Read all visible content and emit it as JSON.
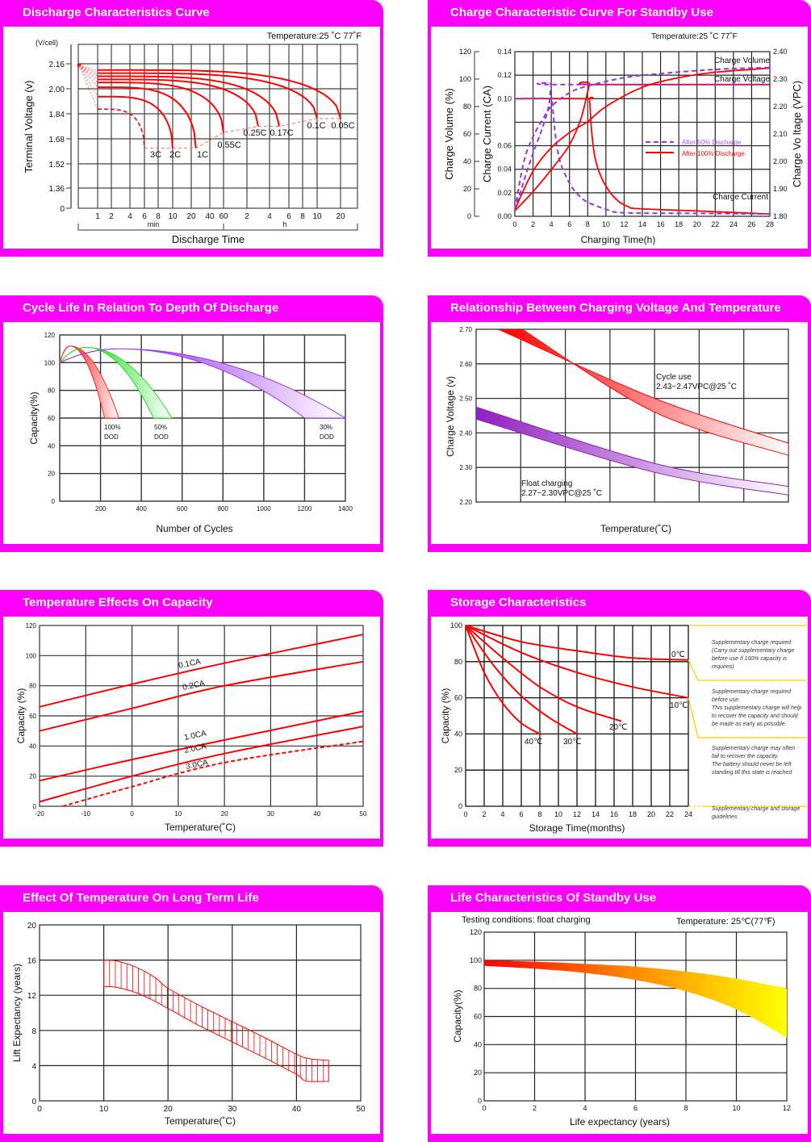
{
  "colors": {
    "panel": "#ff00ff",
    "red": "#ff0000",
    "purple": "#9933dd",
    "green": "#22dd22",
    "yellow": "#ffcc00",
    "grid": "#333333"
  },
  "chart_data": [
    {
      "type": "line",
      "title": "Discharge Characteristics Curve",
      "note": "Temperature:25 ˚C  77˚F",
      "y_unit": "(V/cell)",
      "ylabel": "Terminal  Voltage  (v)",
      "xlabel": "Discharge  Time",
      "y_ticks": [
        "2.16",
        "2.00",
        "1.84",
        "1.68",
        "1.52",
        "1.36",
        "0"
      ],
      "x_ticks": [
        "1",
        "2",
        "4",
        "6",
        "8",
        "10",
        "20",
        "40",
        "60",
        "2",
        "4",
        "6",
        "8",
        "10",
        "20"
      ],
      "x_tick_minutes": [
        1,
        2,
        4,
        6,
        8,
        10,
        20,
        40,
        60,
        120,
        240,
        360,
        480,
        600,
        1200
      ],
      "x_groups": [
        "min",
        "h"
      ],
      "series": [
        {
          "name": "3C",
          "start_v": 1.87,
          "end_min": 6,
          "end_v": 1.62,
          "dashed": true
        },
        {
          "name": "2C",
          "start_v": 1.95,
          "end_min": 10,
          "end_v": 1.62
        },
        {
          "name": "1C",
          "start_v": 2.01,
          "end_min": 25,
          "end_v": 1.62
        },
        {
          "name": "0.55C",
          "start_v": 2.04,
          "end_min": 60,
          "end_v": 1.72
        },
        {
          "name": "0.25C",
          "start_v": 2.06,
          "end_min": 180,
          "end_v": 1.76
        },
        {
          "name": "0.17C",
          "start_v": 2.08,
          "end_min": 300,
          "end_v": 1.76
        },
        {
          "name": "0.1C",
          "start_v": 2.1,
          "end_min": 600,
          "end_v": 1.81
        },
        {
          "name": "0.05C",
          "start_v": 2.12,
          "end_min": 1200,
          "end_v": 1.81
        }
      ]
    },
    {
      "type": "line",
      "title": "Charge Characteristic Curve For Standby Use",
      "note": "Temperature:25 ˚C  77˚F",
      "ylabel_volume": "Charge   Volume (%)",
      "ylabel_current": "Charge  Current (CA)",
      "ylabel_voltage": "Charge Vo ltage (VPC)",
      "xlabel": "Charging Time(h)",
      "xlim": [
        0,
        28
      ],
      "x_ticks": [
        "0",
        "2",
        "4",
        "6",
        "8",
        "10",
        "12",
        "14",
        "16",
        "18",
        "20",
        "22",
        "24",
        "26",
        "28"
      ],
      "volume_ticks": [
        "0",
        "20",
        "40",
        "60",
        "80",
        "100",
        "120"
      ],
      "current_ticks": [
        "0.00",
        "0.02",
        "0.04",
        "0.06",
        "0.10",
        "0.12",
        "0.14"
      ],
      "current_tick_values": [
        0,
        0.02,
        0.04,
        0.06,
        0.1,
        0.12,
        0.14
      ],
      "voltage_ticks": [
        "1.80",
        "1.90",
        "2.00",
        "2.10",
        "2.20",
        "2.30",
        "2.40"
      ],
      "annotations": [
        "Charge Volume",
        "Charge Voltage",
        "Charge Current"
      ],
      "legend": [
        "After 50% Discharge",
        "After 100% Discharge"
      ],
      "series": [
        {
          "name": "Current after 100% discharge",
          "axis": "current",
          "dashed": false,
          "points": [
            [
              0,
              0.1
            ],
            [
              7.9,
              0.1
            ],
            [
              8.2,
              0.099
            ],
            [
              8.4,
              0.075
            ],
            [
              8.8,
              0.05
            ],
            [
              9.5,
              0.033
            ],
            [
              10.5,
              0.02
            ],
            [
              11.5,
              0.012
            ],
            [
              12.5,
              0.008
            ],
            [
              13.5,
              0.0065
            ],
            [
              20,
              0.0045
            ],
            [
              28,
              0.002
            ]
          ]
        },
        {
          "name": "Current after 50% discharge",
          "axis": "current",
          "dashed": true,
          "points": [
            [
              0,
              0.1
            ],
            [
              3.8,
              0.1
            ],
            [
              4.1,
              0.095
            ],
            [
              4.5,
              0.066
            ],
            [
              5,
              0.046
            ],
            [
              6,
              0.028
            ],
            [
              7,
              0.018
            ],
            [
              8,
              0.012
            ],
            [
              10,
              0.006
            ],
            [
              12,
              0.003
            ],
            [
              20,
              0.0025
            ],
            [
              28,
              0.002
            ]
          ]
        },
        {
          "name": "Voltage after 100% discharge",
          "axis": "voltage",
          "dashed": false,
          "points": [
            [
              0,
              1.82
            ],
            [
              2,
              1.89
            ],
            [
              4,
              1.97
            ],
            [
              6,
              2.06
            ],
            [
              7.3,
              2.16
            ],
            [
              8.2,
              2.28
            ],
            [
              8.6,
              2.28
            ],
            [
              28,
              2.28
            ]
          ]
        },
        {
          "name": "Voltage after 50% discharge",
          "axis": "voltage",
          "dashed": true,
          "points": [
            [
              0,
              1.82
            ],
            [
              1,
              1.93
            ],
            [
              2,
              2.03
            ],
            [
              3,
              2.12
            ],
            [
              3.7,
              2.2
            ],
            [
              4,
              2.28
            ],
            [
              4.3,
              2.28
            ],
            [
              28,
              2.28
            ]
          ]
        },
        {
          "name": "Volume after 100% discharge",
          "axis": "volume",
          "dashed": false,
          "points": [
            [
              0,
              5
            ],
            [
              2,
              33
            ],
            [
              4,
              50
            ],
            [
              6,
              61
            ],
            [
              8,
              69
            ],
            [
              10,
              80
            ],
            [
              14,
              94
            ],
            [
              18,
              101
            ],
            [
              22,
              105
            ],
            [
              28,
              108
            ]
          ]
        },
        {
          "name": "Volume after 50% discharge",
          "axis": "volume",
          "dashed": true,
          "points": [
            [
              0,
              5
            ],
            [
              1,
              40
            ],
            [
              2,
              58
            ],
            [
              3,
              70
            ],
            [
              4,
              80
            ],
            [
              6,
              90
            ],
            [
              8,
              95
            ],
            [
              12,
              101
            ],
            [
              16,
              104
            ],
            [
              22,
              107
            ],
            [
              28,
              108.5
            ]
          ]
        }
      ]
    },
    {
      "type": "area",
      "title": "Cycle Life In Relation To Depth Of Discharge",
      "xlabel": "Number of Cycles",
      "ylabel": "Capacity(%)",
      "xlim": [
        0,
        1400
      ],
      "ylim": [
        0,
        120
      ],
      "x_ticks": [
        "200",
        "400",
        "600",
        "800",
        "1000",
        "1200",
        "1400"
      ],
      "y_ticks": [
        "0",
        "20",
        "40",
        "60",
        "80",
        "100",
        "120"
      ],
      "series": [
        {
          "name": "100%",
          "label2": "DOD",
          "peak": [
            50,
            112
          ],
          "end_cycles": [
            220,
            290
          ],
          "end_capacity": 60,
          "color": "#ff2020"
        },
        {
          "name": "50%",
          "label2": "DOD",
          "peak": [
            130,
            111
          ],
          "end_cycles": [
            460,
            550
          ],
          "end_capacity": 60,
          "color": "#22dd22"
        },
        {
          "name": "30%",
          "label2": "DOD",
          "peak": [
            290,
            110
          ],
          "end_cycles": [
            1200,
            1400
          ],
          "end_capacity": 60,
          "color": "#9933ee"
        }
      ]
    },
    {
      "type": "area",
      "title": "Relationship Between Charging Voltage And Temperature",
      "xlabel": "Temperature(˚C)",
      "ylabel": "Charge Voltage  (v)",
      "ylim": [
        2.2,
        2.7
      ],
      "x_grid_columns": 7,
      "y_ticks": [
        "2.20",
        "2.30",
        "2.40",
        "2.50",
        "2.60",
        "2.70"
      ],
      "series": [
        {
          "name": "Cycle use",
          "range": "2.43~2.47VPC@25 ˚C",
          "color": "#ff0000",
          "upper": [
            [
              0.5,
              2.7
            ],
            [
              4,
              2.5
            ],
            [
              7,
              2.37
            ]
          ],
          "lower": [
            [
              1.03,
              2.7
            ],
            [
              4,
              2.46
            ],
            [
              7,
              2.335
            ]
          ]
        },
        {
          "name": "Float charging",
          "range": "2.27~2.30VPC@25 ˚C",
          "color": "#9020c0",
          "upper": [
            [
              0,
              2.475
            ],
            [
              4,
              2.312
            ],
            [
              7,
              2.245
            ]
          ],
          "lower": [
            [
              0,
              2.44
            ],
            [
              4,
              2.286
            ],
            [
              7,
              2.22
            ]
          ]
        }
      ]
    },
    {
      "type": "line",
      "title": "Temperature Effects On Capacity",
      "xlabel": "Temperature(˚C)",
      "ylabel": "Capacity  (%)",
      "xlim": [
        -20,
        50
      ],
      "ylim": [
        0,
        120
      ],
      "x_ticks": [
        "-20",
        "-10",
        "0",
        "10",
        "20",
        "30",
        "40",
        "50"
      ],
      "y_ticks": [
        "0",
        "20",
        "40",
        "60",
        "80",
        "100",
        "120"
      ],
      "series": [
        {
          "name": "0.1CA",
          "points": [
            [
              -20,
              66
            ],
            [
              0,
              81
            ],
            [
              20,
              95
            ],
            [
              50,
              114
            ]
          ]
        },
        {
          "name": "0.2CA",
          "points": [
            [
              -20,
              50
            ],
            [
              0,
              65
            ],
            [
              20,
              80
            ],
            [
              50,
              96
            ]
          ]
        },
        {
          "name": "1.0CA",
          "points": [
            [
              -20,
              17
            ],
            [
              0,
              31
            ],
            [
              20,
              44
            ],
            [
              50,
              63
            ]
          ]
        },
        {
          "name": "2.0CA",
          "points": [
            [
              -20,
              3
            ],
            [
              0,
              20
            ],
            [
              20,
              35
            ],
            [
              50,
              53
            ]
          ]
        },
        {
          "name": "3.0CA",
          "dashed": true,
          "points": [
            [
              -15,
              0
            ],
            [
              0,
              13
            ],
            [
              20,
              29
            ],
            [
              50,
              43
            ]
          ]
        }
      ]
    },
    {
      "type": "line",
      "title": "Storage Characteristics",
      "xlabel": "Storage  Time(months)",
      "ylabel": "Capacity   (%)",
      "xlim": [
        0,
        24
      ],
      "ylim": [
        0,
        100
      ],
      "x_ticks": [
        "0",
        "2",
        "4",
        "6",
        "8",
        "10",
        "12",
        "14",
        "16",
        "18",
        "20",
        "22",
        "24"
      ],
      "y_ticks": [
        "0",
        "20",
        "40",
        "60",
        "80",
        "100"
      ],
      "series": [
        {
          "name": "0℃",
          "points": [
            [
              0,
              100
            ],
            [
              6,
              91
            ],
            [
              12,
              86
            ],
            [
              18,
              82
            ],
            [
              24,
              81
            ]
          ]
        },
        {
          "name": "10℃",
          "points": [
            [
              0,
              100
            ],
            [
              6,
              85
            ],
            [
              12,
              74
            ],
            [
              18,
              66
            ],
            [
              24,
              60
            ]
          ]
        },
        {
          "name": "20℃",
          "points": [
            [
              0,
              100
            ],
            [
              4,
              82
            ],
            [
              8,
              66
            ],
            [
              12,
              55
            ],
            [
              16.8,
              47
            ]
          ]
        },
        {
          "name": "30℃",
          "points": [
            [
              0,
              100
            ],
            [
              3,
              78
            ],
            [
              6,
              61
            ],
            [
              9,
              49
            ],
            [
              12,
              40
            ]
          ]
        },
        {
          "name": "40℃",
          "points": [
            [
              0,
              100
            ],
            [
              2,
              74
            ],
            [
              4,
              57
            ],
            [
              6,
              46
            ],
            [
              8,
              40
            ]
          ]
        }
      ],
      "notes": [
        [
          "Supplementary charge required",
          "(Carry out supplementary charge",
          "before use if 100% capacity is",
          "requires)"
        ],
        [
          "Supplementary charge required",
          "before use.",
          "This supplementary charge will help",
          "to recover the capacity and should",
          "be made  as early as possible."
        ],
        [
          "Supplementary charge may often",
          "fail to recover the capacity.",
          "The battery should never be left",
          "standing till this state is reached"
        ],
        [
          "Supplementary charge and storage",
          "guidelines"
        ]
      ]
    },
    {
      "type": "area",
      "title": "Effect Of Temperature On Long Term Life",
      "xlabel": "Temperature(˚C)",
      "ylabel": "Lift Expectancy  (years)",
      "xlim": [
        0,
        50
      ],
      "ylim": [
        0,
        20
      ],
      "x_ticks": [
        "0",
        "10",
        "20",
        "30",
        "40",
        "50"
      ],
      "y_ticks": [
        "0",
        "4",
        "8",
        "12",
        "16",
        "20"
      ],
      "upper": [
        [
          10,
          16
        ],
        [
          12,
          15.9
        ],
        [
          15,
          15.2
        ],
        [
          18,
          14
        ],
        [
          20,
          12.8
        ],
        [
          25,
          10.8
        ],
        [
          30,
          9
        ],
        [
          35,
          7.2
        ],
        [
          40,
          5.3
        ],
        [
          42,
          4.8
        ],
        [
          45,
          4.6
        ]
      ],
      "lower": [
        [
          10,
          13
        ],
        [
          12,
          12.9
        ],
        [
          15,
          12.3
        ],
        [
          18,
          11.3
        ],
        [
          20,
          10.5
        ],
        [
          25,
          8.5
        ],
        [
          30,
          6.7
        ],
        [
          35,
          4.9
        ],
        [
          40,
          3
        ],
        [
          41,
          2.4
        ],
        [
          42,
          2.2
        ],
        [
          45,
          2.2
        ]
      ]
    },
    {
      "type": "area",
      "title": "Life Characteristics Of Standby Use",
      "conditions": "Testing conditions: float charging",
      "note": "Temperature: 25℃(77℉)",
      "xlabel": "Life expectancy (years)",
      "ylabel": "Capacity(%)",
      "xlim": [
        0,
        12
      ],
      "ylim": [
        0,
        120
      ],
      "x_ticks": [
        "0",
        "2",
        "4",
        "6",
        "8",
        "10",
        "12"
      ],
      "y_ticks": [
        "0",
        "20",
        "40",
        "60",
        "80",
        "100",
        "120"
      ],
      "upper": [
        [
          0,
          100
        ],
        [
          2,
          99
        ],
        [
          4,
          97.5
        ],
        [
          6,
          95.5
        ],
        [
          8,
          92
        ],
        [
          10,
          87
        ],
        [
          12,
          80
        ]
      ],
      "lower": [
        [
          0,
          96
        ],
        [
          2,
          94
        ],
        [
          4,
          91
        ],
        [
          6,
          86
        ],
        [
          8,
          78
        ],
        [
          10,
          65
        ],
        [
          12,
          45
        ]
      ]
    }
  ]
}
